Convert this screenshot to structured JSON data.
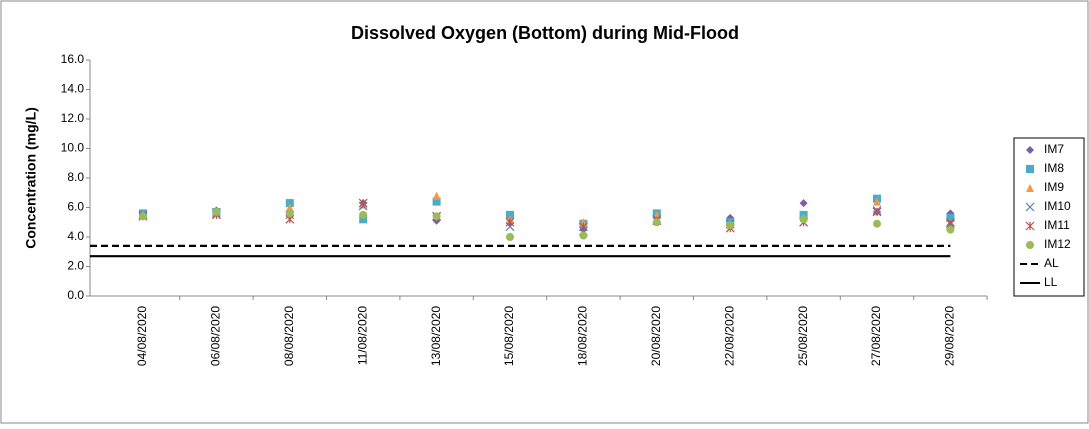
{
  "chart_data": {
    "type": "line",
    "title": "Dissolved Oxygen (Bottom) during Mid-Flood",
    "y_label": "Concentration (mg/L)",
    "categories": [
      "04/08/2020",
      "06/08/2020",
      "08/08/2020",
      "11/08/2020",
      "13/08/2020",
      "15/08/2020",
      "18/08/2020",
      "20/08/2020",
      "22/08/2020",
      "25/08/2020",
      "27/08/2020",
      "29/08/2020"
    ],
    "ylim": [
      0,
      16
    ],
    "yticks": [
      {
        "value": 0,
        "label": "0.0"
      },
      {
        "value": 2,
        "label": "2.0"
      },
      {
        "value": 4,
        "label": "4.0"
      },
      {
        "value": 6,
        "label": "6.0"
      },
      {
        "value": 8,
        "label": "8.0"
      },
      {
        "value": 10,
        "label": "10.0"
      },
      {
        "value": 12,
        "label": "12.0"
      },
      {
        "value": 14,
        "label": "14.0"
      },
      {
        "value": 16,
        "label": "16.0"
      }
    ],
    "grid": false,
    "legend": "right",
    "series": [
      {
        "name": "IM7",
        "color": "#7e5ca6",
        "marker": "diamond",
        "values": [
          5.6,
          5.8,
          6.2,
          6.3,
          5.1,
          5.0,
          4.5,
          5.4,
          5.3,
          6.3,
          5.7,
          5.6
        ]
      },
      {
        "name": "IM8",
        "color": "#4bacc6",
        "marker": "square",
        "values": [
          5.6,
          5.7,
          6.3,
          5.2,
          6.4,
          5.5,
          4.9,
          5.6,
          5.0,
          5.5,
          6.6,
          5.3
        ]
      },
      {
        "name": "IM9",
        "color": "#f79646",
        "marker": "triangle",
        "values": [
          5.5,
          5.7,
          6.0,
          6.2,
          6.8,
          5.2,
          5.0,
          5.5,
          4.8,
          5.3,
          6.4,
          5.0
        ]
      },
      {
        "name": "IM10",
        "color": "#4f81bd",
        "marker": "x",
        "values": [
          5.5,
          5.6,
          5.5,
          6.1,
          5.4,
          4.7,
          4.4,
          5.2,
          4.9,
          5.0,
          5.8,
          5.0
        ]
      },
      {
        "name": "IM11",
        "color": "#c0504d",
        "marker": "star",
        "values": [
          5.4,
          5.5,
          5.2,
          6.3,
          5.4,
          5.0,
          4.7,
          5.1,
          4.6,
          5.0,
          5.7,
          4.9
        ]
      },
      {
        "name": "IM12",
        "color": "#9bbb59",
        "marker": "circle",
        "values": [
          5.4,
          5.7,
          5.6,
          5.5,
          5.4,
          4.0,
          4.1,
          5.0,
          4.8,
          5.2,
          4.9,
          4.5
        ]
      },
      {
        "name": "AL",
        "color": "#000000",
        "line": "dashed",
        "values": [
          3.4,
          3.4,
          3.4,
          3.4,
          3.4,
          3.4,
          3.4,
          3.4,
          3.4,
          3.4,
          3.4,
          3.4
        ]
      },
      {
        "name": "LL",
        "color": "#000000",
        "line": "solid",
        "values": [
          2.7,
          2.7,
          2.7,
          2.7,
          2.7,
          2.7,
          2.7,
          2.7,
          2.7,
          2.7,
          2.7,
          2.7
        ]
      }
    ]
  }
}
